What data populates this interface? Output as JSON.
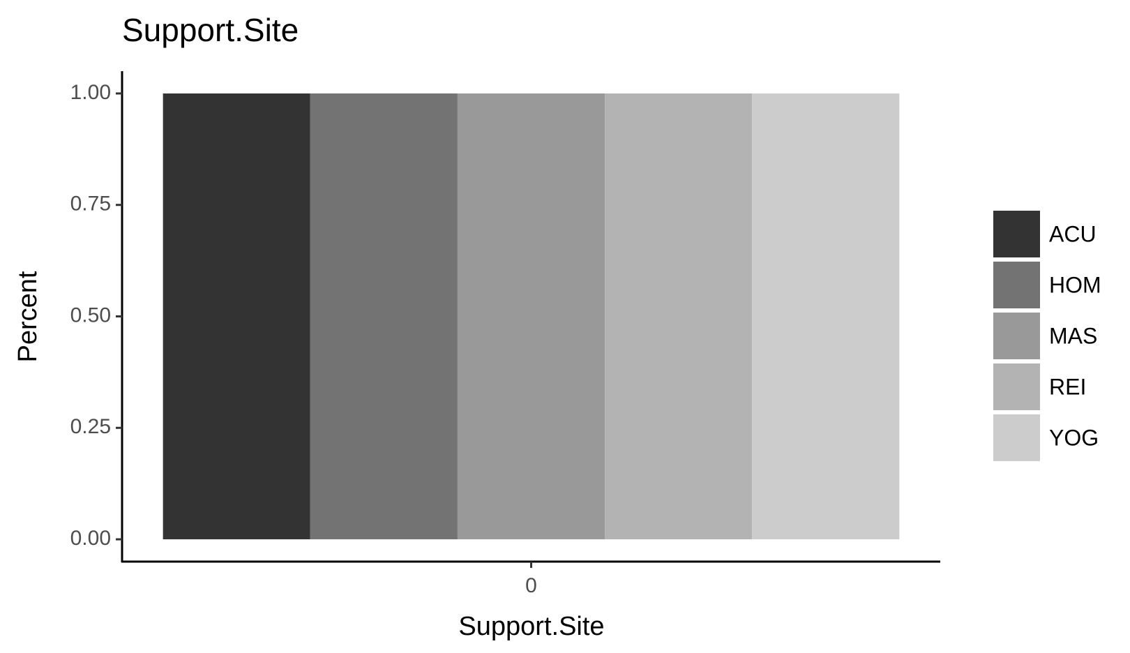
{
  "chart_data": {
    "type": "bar",
    "title": "Support.Site",
    "x_label": "Support.Site",
    "y_label": "Percent",
    "categories": [
      "0"
    ],
    "series": [
      {
        "name": "ACU",
        "color": "#333333",
        "values": [
          1
        ]
      },
      {
        "name": "HOM",
        "color": "#737373",
        "values": [
          1
        ]
      },
      {
        "name": "MAS",
        "color": "#999999",
        "values": [
          1
        ]
      },
      {
        "name": "REI",
        "color": "#b3b3b3",
        "values": [
          1
        ]
      },
      {
        "name": "YOG",
        "color": "#cccccc",
        "values": [
          1
        ]
      }
    ],
    "ylim": [
      -0.05,
      1.05
    ],
    "yticks": [
      {
        "value": 0,
        "label": "0.00"
      },
      {
        "value": 0.25,
        "label": "0.25"
      },
      {
        "value": 0.5,
        "label": "0.50"
      },
      {
        "value": 0.75,
        "label": "0.75"
      },
      {
        "value": 1,
        "label": "1.00"
      }
    ],
    "legend": "right"
  }
}
